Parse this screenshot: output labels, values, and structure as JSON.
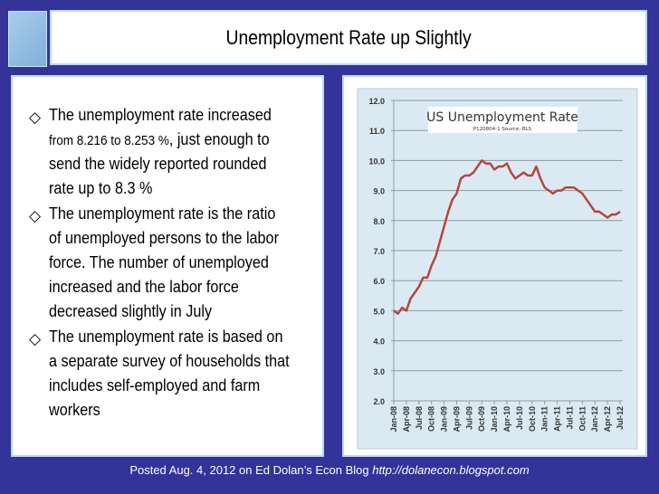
{
  "slide": {
    "title": "Unemployment Rate up Slightly",
    "bullets": [
      {
        "lines": [
          "The unemployment rate increased",
          {
            "small": "from 8.216 to 8.253 %",
            "rest": ", just enough to"
          },
          "send the widely reported rounded",
          "rate up to 8.3 %"
        ]
      },
      {
        "lines": [
          "The unemployment rate is the ratio",
          "of unemployed persons to the labor",
          "force. The number of unemployed",
          "increased and the labor force",
          "decreased slightly in July"
        ]
      },
      {
        "lines": [
          "The unemployment rate is based on",
          "a separate survey of households that",
          "includes self-employed and farm",
          "workers"
        ]
      }
    ],
    "bullet_icon": "hollow-diamond",
    "footer": {
      "text": "Posted Aug. 4, 2012 on Ed Dolan’s Econ Blog ",
      "url": "http://dolanecon.blogspot.com"
    }
  },
  "colors": {
    "background": "#34339a",
    "plot_bg": "#dbeaf2",
    "line": "#b5453f"
  },
  "chart_data": {
    "type": "line",
    "title": "US Unemployment Rate",
    "subtitle": "P120804-1 Source: BLS",
    "ylim": [
      2.0,
      12.0
    ],
    "yticks": [
      "2.0",
      "3.0",
      "4.0",
      "5.0",
      "6.0",
      "7.0",
      "8.0",
      "9.0",
      "10.0",
      "11.0",
      "12.0"
    ],
    "xtick_labels": [
      "Jan-08",
      "Apr-08",
      "Jul-08",
      "Oct-08",
      "Jan-09",
      "Apr-09",
      "Jul-09",
      "Oct-09",
      "Jan-10",
      "Apr-10",
      "Jul-10",
      "Oct-10",
      "Jan-11",
      "Apr-11",
      "Jul-11",
      "Oct-11",
      "Jan-12",
      "Apr-12",
      "Jul-12"
    ],
    "grid": true,
    "x_start": "Jan-08",
    "x_end": "Jul-12",
    "values": [
      5.0,
      4.9,
      5.1,
      5.0,
      5.4,
      5.6,
      5.8,
      6.1,
      6.1,
      6.5,
      6.8,
      7.3,
      7.8,
      8.3,
      8.7,
      8.9,
      9.4,
      9.5,
      9.5,
      9.6,
      9.8,
      10.0,
      9.9,
      9.9,
      9.7,
      9.8,
      9.8,
      9.9,
      9.6,
      9.4,
      9.5,
      9.6,
      9.5,
      9.5,
      9.8,
      9.4,
      9.1,
      9.0,
      8.9,
      9.0,
      9.0,
      9.1,
      9.1,
      9.1,
      9.0,
      8.9,
      8.7,
      8.5,
      8.3,
      8.3,
      8.2,
      8.1,
      8.2,
      8.2,
      8.3
    ]
  }
}
